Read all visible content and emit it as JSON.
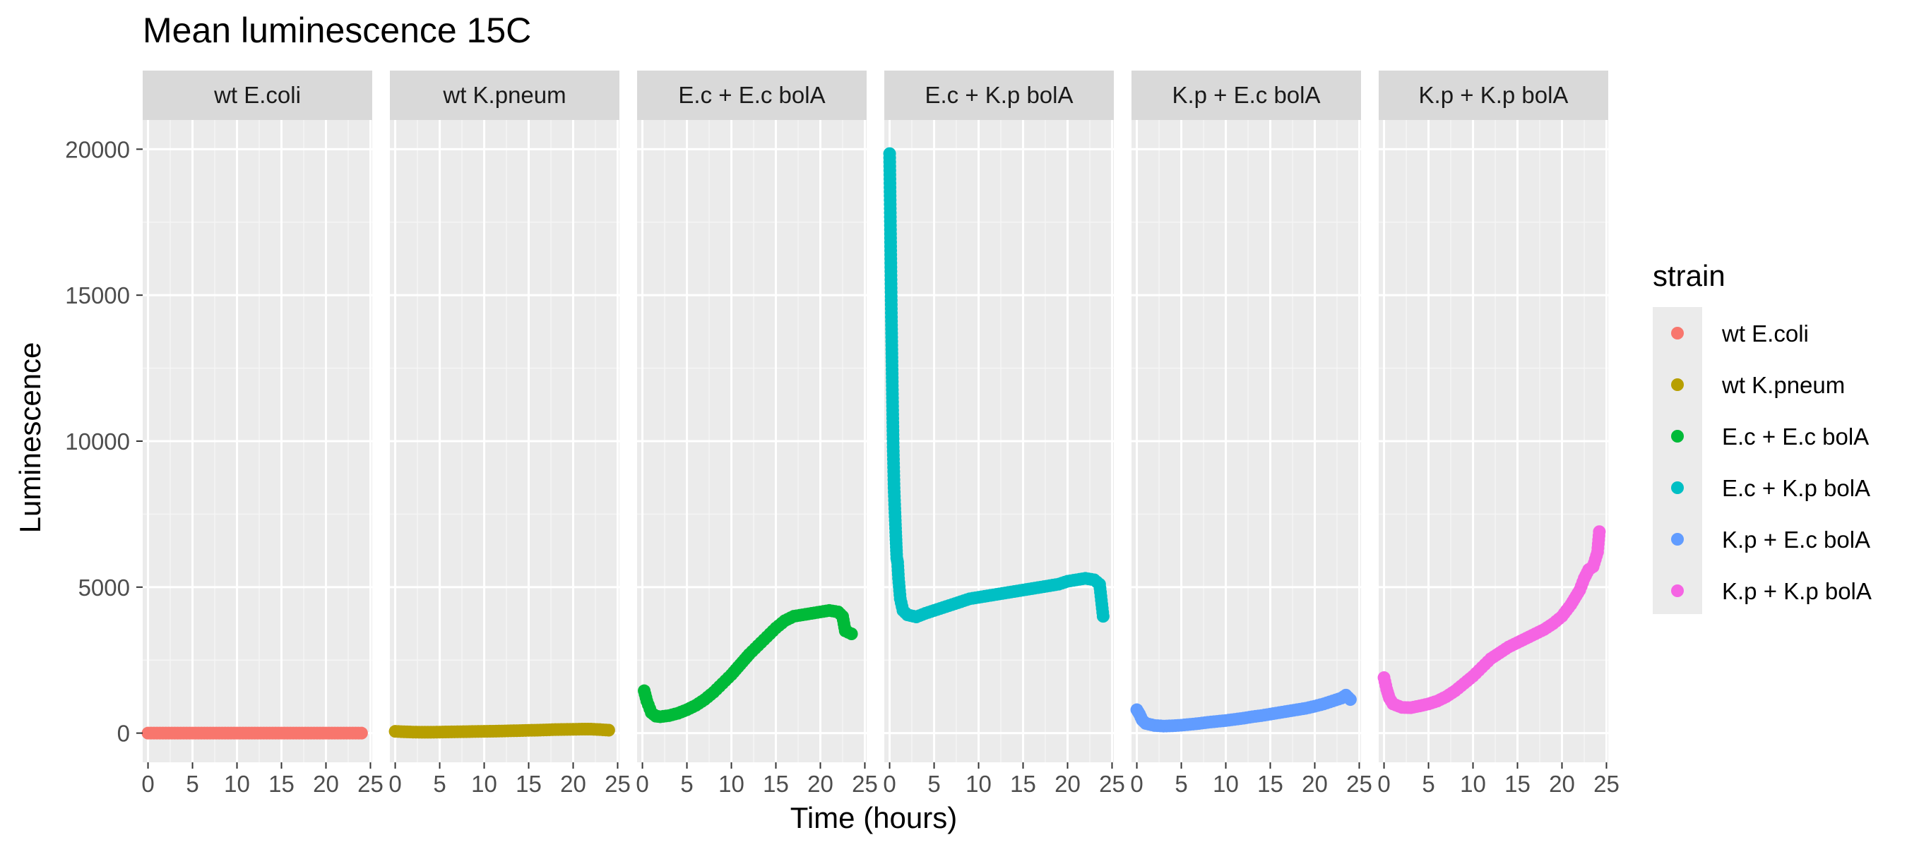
{
  "chart_data": {
    "type": "scatter",
    "title": "Mean luminescence 15C",
    "xlabel": "Time (hours)",
    "ylabel": "Luminescence",
    "xlim": [
      -0.6,
      25.2
    ],
    "ylim": [
      -1000,
      21000
    ],
    "x_ticks": [
      0,
      5,
      10,
      15,
      20,
      25
    ],
    "y_ticks": [
      0,
      5000,
      10000,
      15000,
      20000
    ],
    "grid": true,
    "legend": {
      "title": "strain",
      "position": "right"
    },
    "series": [
      {
        "name": "wt E.coli",
        "color": "#F8766D",
        "points": [
          [
            0,
            0
          ],
          [
            1,
            0
          ],
          [
            2,
            0
          ],
          [
            3,
            0
          ],
          [
            4,
            0
          ],
          [
            5,
            0
          ],
          [
            6,
            0
          ],
          [
            7,
            0
          ],
          [
            8,
            0
          ],
          [
            9,
            0
          ],
          [
            10,
            0
          ],
          [
            11,
            0
          ],
          [
            12,
            0
          ],
          [
            13,
            0
          ],
          [
            14,
            0
          ],
          [
            15,
            0
          ],
          [
            16,
            0
          ],
          [
            17,
            0
          ],
          [
            18,
            0
          ],
          [
            19,
            0
          ],
          [
            20,
            0
          ],
          [
            21,
            0
          ],
          [
            22,
            0
          ],
          [
            23,
            0
          ],
          [
            24,
            0
          ]
        ]
      },
      {
        "name": "wt K.pneum",
        "color": "#B79F00",
        "points": [
          [
            0,
            60
          ],
          [
            1,
            45
          ],
          [
            2,
            35
          ],
          [
            3,
            30
          ],
          [
            4,
            30
          ],
          [
            5,
            35
          ],
          [
            6,
            40
          ],
          [
            7,
            45
          ],
          [
            8,
            50
          ],
          [
            9,
            55
          ],
          [
            10,
            60
          ],
          [
            11,
            65
          ],
          [
            12,
            70
          ],
          [
            13,
            80
          ],
          [
            14,
            85
          ],
          [
            15,
            95
          ],
          [
            16,
            100
          ],
          [
            17,
            110
          ],
          [
            18,
            120
          ],
          [
            19,
            125
          ],
          [
            20,
            130
          ],
          [
            21,
            135
          ],
          [
            22,
            135
          ],
          [
            23,
            120
          ],
          [
            24,
            100
          ]
        ]
      },
      {
        "name": "E.c + E.c bolA",
        "color": "#00BA38",
        "points": [
          [
            0.2,
            1450
          ],
          [
            0.5,
            1100
          ],
          [
            1,
            700
          ],
          [
            1.5,
            580
          ],
          [
            2,
            560
          ],
          [
            3,
            600
          ],
          [
            4,
            680
          ],
          [
            5,
            800
          ],
          [
            6,
            950
          ],
          [
            7,
            1150
          ],
          [
            8,
            1400
          ],
          [
            9,
            1700
          ],
          [
            10,
            2000
          ],
          [
            11,
            2350
          ],
          [
            12,
            2700
          ],
          [
            13,
            3000
          ],
          [
            14,
            3300
          ],
          [
            15,
            3600
          ],
          [
            16,
            3850
          ],
          [
            17,
            4000
          ],
          [
            18,
            4050
          ],
          [
            19,
            4100
          ],
          [
            20,
            4150
          ],
          [
            21,
            4200
          ],
          [
            22,
            4150
          ],
          [
            22.5,
            4000
          ],
          [
            22.8,
            3500
          ],
          [
            23.5,
            3400
          ]
        ]
      },
      {
        "name": "E.c + K.p bolA",
        "color": "#00BFC4",
        "points": [
          [
            0,
            19850
          ],
          [
            0.1,
            17100
          ],
          [
            0.2,
            14250
          ],
          [
            0.3,
            11900
          ],
          [
            0.4,
            9800
          ],
          [
            0.5,
            8400
          ],
          [
            0.6,
            7550
          ],
          [
            0.7,
            6750
          ],
          [
            0.8,
            6000
          ],
          [
            0.9,
            5850
          ],
          [
            1,
            5300
          ],
          [
            1.2,
            4600
          ],
          [
            1.5,
            4200
          ],
          [
            2,
            4050
          ],
          [
            3,
            3980
          ],
          [
            4,
            4100
          ],
          [
            5,
            4200
          ],
          [
            6,
            4300
          ],
          [
            7,
            4400
          ],
          [
            8,
            4500
          ],
          [
            9,
            4600
          ],
          [
            10,
            4650
          ],
          [
            11,
            4700
          ],
          [
            12,
            4750
          ],
          [
            13,
            4800
          ],
          [
            14,
            4850
          ],
          [
            15,
            4900
          ],
          [
            16,
            4950
          ],
          [
            17,
            5000
          ],
          [
            18,
            5050
          ],
          [
            19,
            5100
          ],
          [
            20,
            5200
          ],
          [
            21,
            5250
          ],
          [
            22,
            5300
          ],
          [
            23,
            5250
          ],
          [
            23.6,
            5100
          ],
          [
            24,
            4000
          ]
        ]
      },
      {
        "name": "K.p + E.c bolA",
        "color": "#619CFF",
        "points": [
          [
            0,
            800
          ],
          [
            0.3,
            650
          ],
          [
            0.6,
            450
          ],
          [
            1,
            330
          ],
          [
            2,
            260
          ],
          [
            3,
            240
          ],
          [
            4,
            250
          ],
          [
            5,
            270
          ],
          [
            6,
            300
          ],
          [
            7,
            330
          ],
          [
            8,
            370
          ],
          [
            9,
            400
          ],
          [
            10,
            430
          ],
          [
            11,
            470
          ],
          [
            12,
            510
          ],
          [
            13,
            560
          ],
          [
            14,
            600
          ],
          [
            15,
            650
          ],
          [
            16,
            700
          ],
          [
            17,
            750
          ],
          [
            18,
            800
          ],
          [
            19,
            850
          ],
          [
            20,
            920
          ],
          [
            21,
            1000
          ],
          [
            22,
            1100
          ],
          [
            23,
            1200
          ],
          [
            23.5,
            1300
          ],
          [
            24,
            1150
          ]
        ]
      },
      {
        "name": "K.p + K.p bolA",
        "color": "#F564E3",
        "points": [
          [
            0,
            1900
          ],
          [
            0.3,
            1500
          ],
          [
            0.6,
            1200
          ],
          [
            1,
            1000
          ],
          [
            2,
            880
          ],
          [
            3,
            870
          ],
          [
            4,
            930
          ],
          [
            5,
            1000
          ],
          [
            6,
            1100
          ],
          [
            7,
            1250
          ],
          [
            8,
            1450
          ],
          [
            9,
            1700
          ],
          [
            10,
            1950
          ],
          [
            11,
            2250
          ],
          [
            12,
            2550
          ],
          [
            13,
            2750
          ],
          [
            14,
            2950
          ],
          [
            15,
            3100
          ],
          [
            16,
            3250
          ],
          [
            17,
            3400
          ],
          [
            18,
            3550
          ],
          [
            19,
            3750
          ],
          [
            20,
            4000
          ],
          [
            21,
            4400
          ],
          [
            22,
            4900
          ],
          [
            22.5,
            5300
          ],
          [
            23,
            5600
          ],
          [
            23.5,
            5700
          ],
          [
            24,
            6200
          ],
          [
            24.2,
            6900
          ]
        ]
      }
    ]
  }
}
